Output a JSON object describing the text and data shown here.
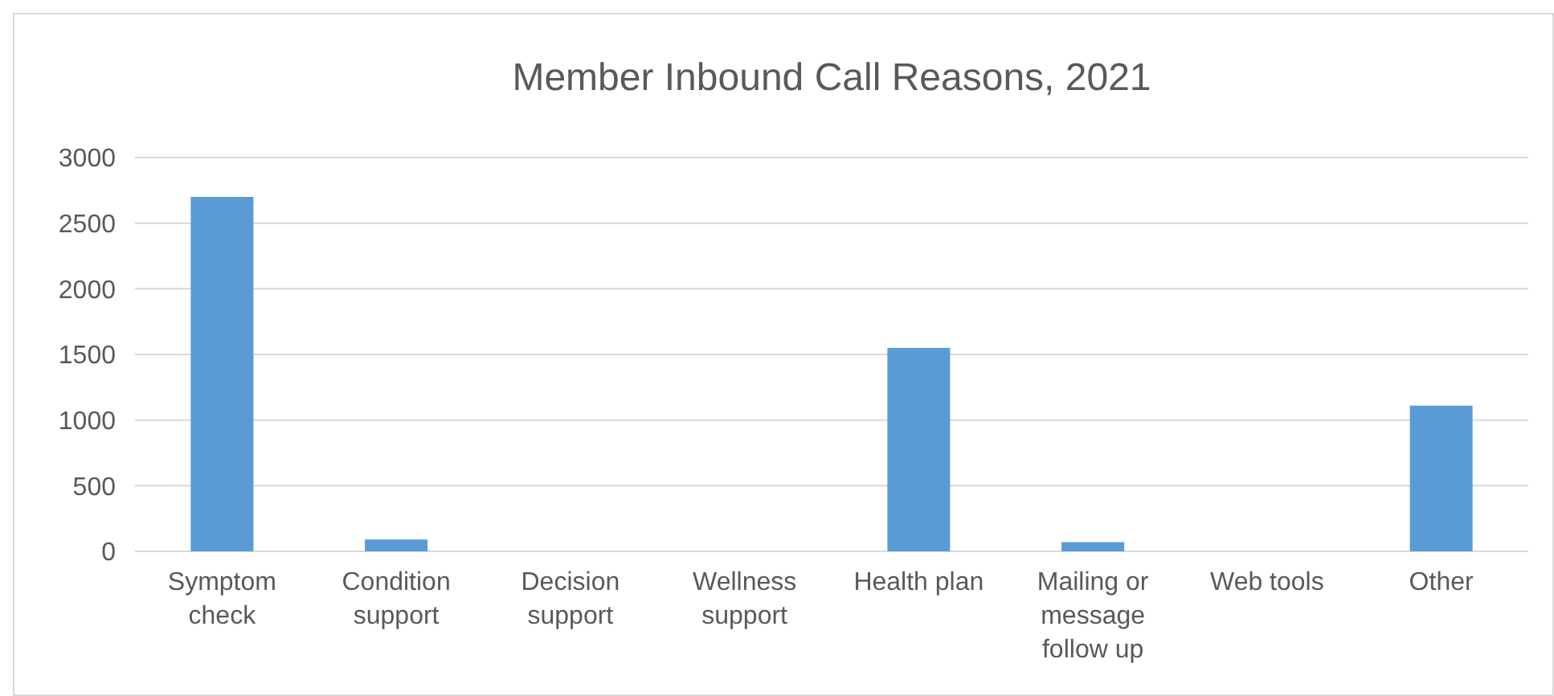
{
  "chart_data": {
    "type": "bar",
    "title": "Member Inbound Call Reasons, 2021",
    "categories": [
      "Symptom check",
      "Condition support",
      "Decision support",
      "Wellness support",
      "Health plan",
      "Mailing or message follow up",
      "Web tools",
      "Other"
    ],
    "values": [
      2700,
      90,
      0,
      0,
      1550,
      70,
      0,
      1110
    ],
    "color": "#5b9bd5",
    "ylim": [
      0,
      3000
    ],
    "yticks": [
      0,
      500,
      1000,
      1500,
      2000,
      2500,
      3000
    ],
    "grid": "y"
  }
}
